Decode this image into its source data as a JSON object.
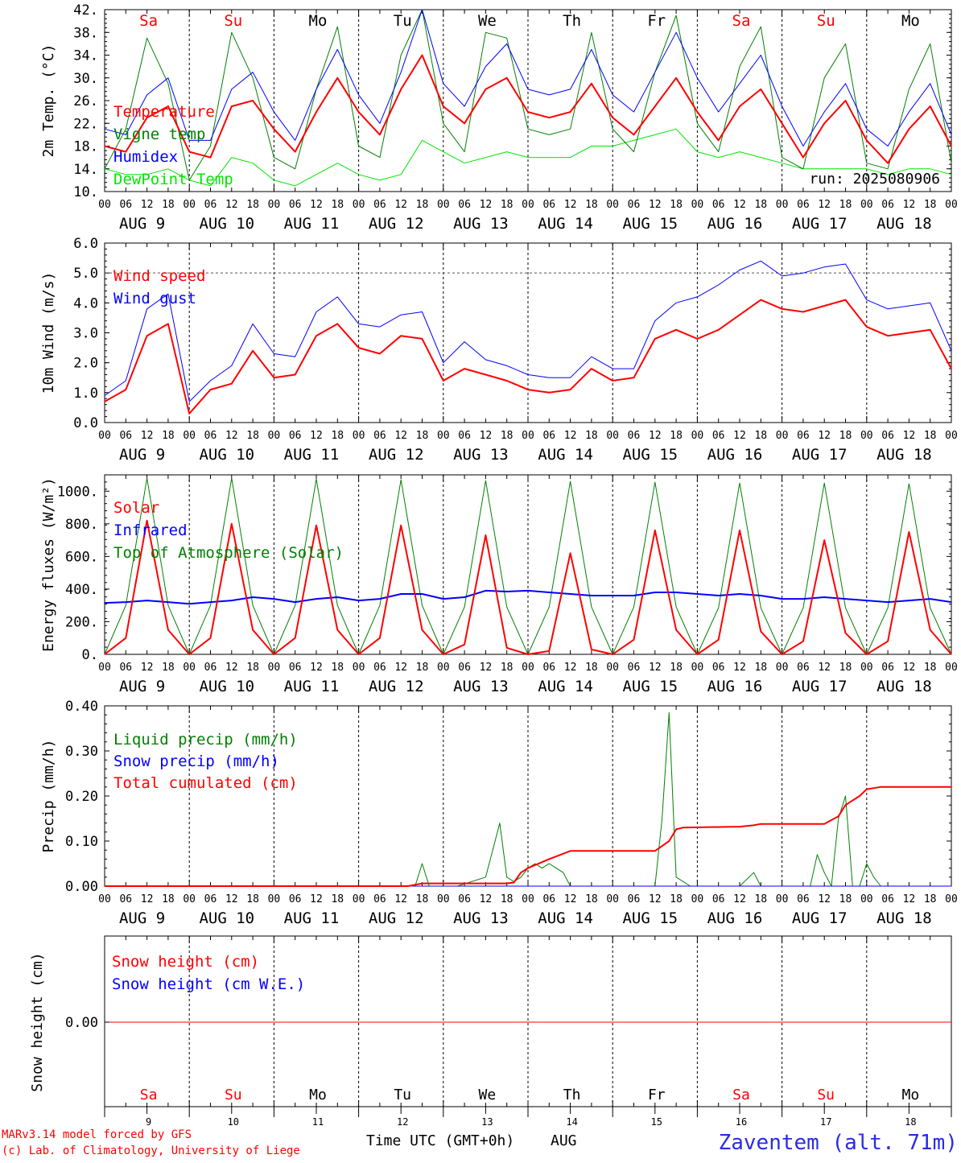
{
  "days": [
    "9",
    "10",
    "11",
    "12",
    "13",
    "14",
    "15",
    "16",
    "17",
    "18"
  ],
  "weekdays": [
    "Sa",
    "Su",
    "Mo",
    "Tu",
    "We",
    "Th",
    "Fr",
    "Sa",
    "Su",
    "Mo"
  ],
  "weekend_color": "#ff0000",
  "weekday_color": "#000000",
  "hour_ticks": [
    "00",
    "06",
    "12",
    "18"
  ],
  "hour_tick_end": "00",
  "month": "AUG",
  "run_label": "run: 2025080906",
  "footer": {
    "model": "MARv3.14 model forced by GFS",
    "copyright": "(c) Lab. of Climatology, University of Liege",
    "xlabel_time": "Time UTC (GMT+0h)",
    "xlabel_month": "AUG",
    "station": "Zaventem (alt. 71m)"
  },
  "colors": {
    "red": "#ff0000",
    "green": "#008000",
    "blue": "#0000ff",
    "lightgreen": "#00e600",
    "station": "#2a2ae6"
  },
  "chart_data": [
    {
      "id": "temperature",
      "type": "line",
      "ylabel": "2m Temp. (°C)",
      "ylim": [
        10,
        42
      ],
      "yticks": [
        "10.",
        "14.",
        "18.",
        "22.",
        "26.",
        "30.",
        "34.",
        "38.",
        "42."
      ],
      "x_hours": [
        0,
        6,
        12,
        18,
        24,
        30,
        36,
        42,
        48,
        54,
        60,
        66,
        72,
        78,
        84,
        90,
        96,
        102,
        108,
        114,
        120,
        126,
        132,
        138,
        144,
        150,
        156,
        162,
        168,
        174,
        180,
        186,
        192,
        198,
        204,
        210,
        216,
        222,
        228,
        234,
        240
      ],
      "series": [
        {
          "name": "Temperature",
          "color": "#ff0000",
          "width": 2,
          "values": [
            18,
            17,
            23,
            25,
            17,
            16,
            25,
            26,
            21,
            17,
            24,
            30,
            24,
            20,
            28,
            34,
            25,
            22,
            28,
            30,
            24,
            23,
            24,
            29,
            23,
            20,
            25,
            30,
            24,
            19,
            25,
            28,
            22,
            16,
            22,
            26,
            19,
            15,
            21,
            25,
            18
          ]
        },
        {
          "name": "Vigne temp",
          "color": "#008000",
          "width": 1,
          "values": [
            14,
            21,
            37,
            29,
            12,
            18,
            38,
            30,
            16,
            14,
            28,
            39,
            18,
            16,
            34,
            42,
            22,
            17,
            38,
            37,
            21,
            20,
            21,
            38,
            21,
            17,
            31,
            41,
            22,
            17,
            32,
            39,
            16,
            14,
            30,
            36,
            15,
            14,
            28,
            36,
            15
          ]
        },
        {
          "name": "Humidex",
          "color": "#0000ff",
          "width": 1,
          "values": [
            21,
            20,
            27,
            30,
            19,
            19,
            28,
            31,
            24,
            19,
            28,
            35,
            27,
            22,
            31,
            42,
            29,
            25,
            32,
            36,
            28,
            27,
            28,
            35,
            27,
            24,
            31,
            38,
            30,
            24,
            29,
            34,
            25,
            18,
            24,
            29,
            21,
            18,
            24,
            29,
            20
          ]
        },
        {
          "name": "DewPoint Temp",
          "color": "#00e600",
          "width": 1,
          "values": [
            14,
            13,
            13,
            14,
            12,
            11,
            16,
            15,
            12,
            11,
            13,
            15,
            13,
            12,
            13,
            19,
            17,
            15,
            16,
            17,
            16,
            16,
            16,
            18,
            18,
            19,
            20,
            21,
            17,
            16,
            17,
            16,
            15,
            14,
            14,
            14,
            14,
            13,
            14,
            14,
            13
          ]
        }
      ]
    },
    {
      "id": "wind",
      "type": "line",
      "ylabel": "10m Wind (m/s)",
      "ylim": [
        0,
        6
      ],
      "yticks": [
        "0.0",
        "1.0",
        "2.0",
        "3.0",
        "4.0",
        "5.0",
        "6.0"
      ],
      "x_hours": [
        0,
        6,
        12,
        18,
        24,
        30,
        36,
        42,
        48,
        54,
        60,
        66,
        72,
        78,
        84,
        90,
        96,
        102,
        108,
        114,
        120,
        126,
        132,
        138,
        144,
        150,
        156,
        162,
        168,
        174,
        180,
        186,
        192,
        198,
        204,
        210,
        216,
        222,
        228,
        234,
        240
      ],
      "series": [
        {
          "name": "Wind speed",
          "color": "#ff0000",
          "width": 2,
          "values": [
            0.7,
            1.1,
            2.9,
            3.3,
            0.3,
            1.1,
            1.3,
            2.4,
            1.5,
            1.6,
            2.9,
            3.3,
            2.5,
            2.3,
            2.9,
            2.8,
            1.4,
            1.8,
            1.6,
            1.4,
            1.1,
            1.0,
            1.1,
            1.8,
            1.4,
            1.5,
            2.8,
            3.1,
            2.8,
            3.1,
            3.6,
            4.1,
            3.8,
            3.7,
            3.9,
            4.1,
            3.2,
            2.9,
            3.0,
            3.1,
            1.8
          ]
        },
        {
          "name": "Wind gust",
          "color": "#0000ff",
          "width": 1,
          "values": [
            0.9,
            1.4,
            3.8,
            4.3,
            0.7,
            1.4,
            1.9,
            3.3,
            2.3,
            2.2,
            3.7,
            4.2,
            3.3,
            3.2,
            3.6,
            3.7,
            2.0,
            2.7,
            2.1,
            1.9,
            1.6,
            1.5,
            1.5,
            2.2,
            1.8,
            1.8,
            3.4,
            4.0,
            4.2,
            4.6,
            5.1,
            5.4,
            4.9,
            5.0,
            5.2,
            5.3,
            4.1,
            3.8,
            3.9,
            4.0,
            2.4
          ]
        }
      ],
      "reference_line": 5.0
    },
    {
      "id": "energy",
      "type": "line",
      "ylabel": "Energy fluxes (W/m²)",
      "ylim": [
        0,
        1100
      ],
      "yticks": [
        "0.",
        "200.",
        "400.",
        "600.",
        "800.",
        "1000."
      ],
      "x_hours": [
        0,
        6,
        12,
        18,
        24,
        30,
        36,
        42,
        48,
        54,
        60,
        66,
        72,
        78,
        84,
        90,
        96,
        102,
        108,
        114,
        120,
        126,
        132,
        138,
        144,
        150,
        156,
        162,
        168,
        174,
        180,
        186,
        192,
        198,
        204,
        210,
        216,
        222,
        228,
        234,
        240
      ],
      "series": [
        {
          "name": "Solar",
          "color": "#ff0000",
          "width": 2,
          "values": [
            0,
            100,
            820,
            150,
            0,
            100,
            800,
            150,
            0,
            100,
            790,
            150,
            0,
            100,
            790,
            150,
            0,
            60,
            730,
            40,
            0,
            20,
            620,
            30,
            0,
            90,
            760,
            150,
            0,
            90,
            760,
            140,
            0,
            80,
            700,
            130,
            0,
            80,
            750,
            150,
            0
          ]
        },
        {
          "name": "Infrared",
          "color": "#0000ff",
          "width": 2,
          "values": [
            315,
            320,
            330,
            320,
            310,
            320,
            330,
            350,
            340,
            320,
            340,
            350,
            330,
            340,
            370,
            370,
            340,
            350,
            390,
            385,
            390,
            380,
            370,
            360,
            360,
            360,
            380,
            380,
            370,
            360,
            370,
            360,
            340,
            340,
            350,
            340,
            330,
            320,
            330,
            340,
            320
          ]
        },
        {
          "name": "Top of Atmosphere (Solar)",
          "color": "#008000",
          "width": 1,
          "values": [
            0,
            300,
            1080,
            300,
            0,
            300,
            1080,
            300,
            0,
            300,
            1075,
            300,
            0,
            300,
            1070,
            300,
            0,
            290,
            1065,
            290,
            0,
            290,
            1060,
            290,
            0,
            290,
            1055,
            290,
            0,
            285,
            1050,
            285,
            0,
            285,
            1050,
            285,
            0,
            285,
            1045,
            285,
            0
          ]
        }
      ]
    },
    {
      "id": "precip",
      "type": "line",
      "ylabel": "Precip (mm/h)",
      "ylim": [
        0,
        0.4
      ],
      "yticks": [
        "0.00",
        "0.10",
        "0.20",
        "0.30",
        "0.40"
      ],
      "series": [
        {
          "name": "Liquid precip (mm/h)",
          "color": "#008000",
          "width": 1,
          "x_hours": [
            0,
            88,
            90,
            92,
            100,
            108,
            110,
            112,
            114,
            116,
            118,
            120,
            122,
            124,
            126,
            128,
            130,
            132,
            134,
            144,
            156,
            158,
            160,
            162,
            164,
            166,
            180,
            184,
            186,
            188,
            200,
            202,
            204,
            206,
            208,
            210,
            212,
            214,
            216,
            218,
            220,
            240
          ],
          "values": [
            0,
            0,
            0.05,
            0,
            0,
            0.02,
            0.08,
            0.14,
            0.02,
            0.01,
            0.02,
            0.04,
            0.05,
            0.04,
            0.05,
            0.04,
            0.03,
            0,
            0,
            0,
            0,
            0.15,
            0.385,
            0.02,
            0.01,
            0,
            0,
            0.03,
            0,
            0,
            0,
            0.07,
            0.03,
            0,
            0.15,
            0.2,
            0,
            0,
            0.05,
            0.02,
            0,
            0
          ]
        },
        {
          "name": "Snow precip (mm/h)",
          "color": "#0000ff",
          "width": 1,
          "x_hours": [
            0,
            240
          ],
          "values": [
            0,
            0
          ]
        },
        {
          "name": "Total cumulated (cm)",
          "color": "#ff0000",
          "width": 2,
          "x_hours": [
            0,
            86,
            90,
            114,
            116,
            118,
            120,
            126,
            132,
            156,
            160,
            162,
            164,
            180,
            184,
            186,
            204,
            208,
            210,
            214,
            216,
            220,
            240
          ],
          "values": [
            0,
            0,
            0.006,
            0.006,
            0.008,
            0.03,
            0.04,
            0.06,
            0.078,
            0.078,
            0.1,
            0.126,
            0.13,
            0.132,
            0.135,
            0.138,
            0.138,
            0.155,
            0.18,
            0.2,
            0.215,
            0.22,
            0.22
          ]
        }
      ]
    },
    {
      "id": "snow",
      "type": "line",
      "ylabel": "Snow height (cm)",
      "yticks": [
        "0.00"
      ],
      "series": [
        {
          "name": "Snow height (cm)",
          "color": "#ff0000",
          "width": 1,
          "values": [
            0,
            0
          ]
        },
        {
          "name": "Snow height (cm W.E.)",
          "color": "#0000ff",
          "width": 1,
          "values": [
            0,
            0
          ]
        }
      ]
    }
  ]
}
